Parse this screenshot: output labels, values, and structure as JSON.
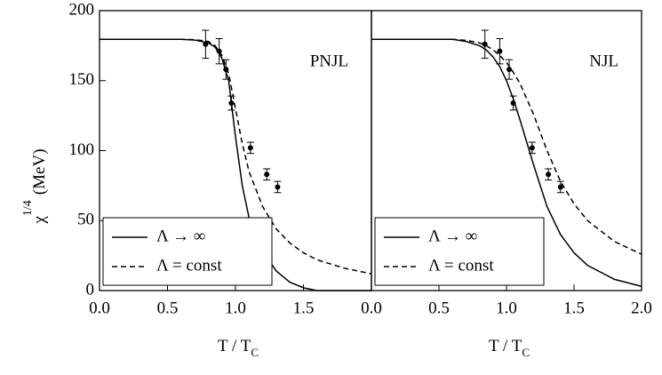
{
  "chart_data": [
    {
      "type": "line",
      "annotation": "PNJL",
      "ylabel": [
        "χ",
        "1/4",
        "(MeV)"
      ],
      "xlabel": [
        "T / T",
        "C"
      ],
      "xlim": [
        0,
        2
      ],
      "ylim": [
        0,
        200
      ],
      "xticks": [
        {
          "value": 0,
          "label": "0.0"
        },
        {
          "value": 0.5,
          "label": "0.5"
        },
        {
          "value": 1,
          "label": "1.0"
        },
        {
          "value": 1.5,
          "label": "1.5"
        }
      ],
      "yticks": [
        0,
        50,
        100,
        150,
        200
      ],
      "x": [
        0,
        0.2,
        0.4,
        0.6,
        0.7,
        0.8,
        0.85,
        0.9,
        0.95,
        1.0,
        1.05,
        1.1,
        1.2,
        1.3,
        1.4,
        1.5,
        1.6,
        1.8,
        2.0
      ],
      "series": [
        {
          "name": "Λ → ∞",
          "color": "#000000",
          "dash": "solid",
          "values": [
            179.5,
            179.5,
            179.5,
            179.5,
            179,
            177,
            174,
            166,
            150,
            110,
            75,
            52,
            28,
            14,
            6,
            2,
            0,
            0,
            0
          ]
        },
        {
          "name": "Λ = const",
          "color": "#000000",
          "dash": "dashed",
          "values": [
            179.5,
            179.5,
            179.5,
            179.5,
            179.3,
            178,
            175,
            168,
            155,
            130,
            105,
            85,
            60,
            44,
            34,
            27,
            22,
            16,
            12
          ]
        }
      ],
      "points": {
        "x": [
          0.78,
          0.88,
          0.93,
          0.97,
          1.11,
          1.23,
          1.31
        ],
        "values": [
          176,
          171,
          158,
          134,
          102,
          83,
          74
        ],
        "errors": [
          10,
          9,
          7,
          5,
          4,
          4,
          4
        ]
      }
    },
    {
      "type": "line",
      "annotation": "NJL",
      "xlabel": [
        "T / T",
        "C"
      ],
      "xlim": [
        0,
        2
      ],
      "ylim": [
        0,
        200
      ],
      "xticks": [
        {
          "value": 0,
          "label": "0.0"
        },
        {
          "value": 0.5,
          "label": "0.5"
        },
        {
          "value": 1,
          "label": "1.0"
        },
        {
          "value": 1.5,
          "label": "1.5"
        },
        {
          "value": 2,
          "label": "2.0"
        }
      ],
      "x": [
        0,
        0.2,
        0.4,
        0.6,
        0.7,
        0.8,
        0.85,
        0.9,
        0.95,
        1.0,
        1.05,
        1.1,
        1.2,
        1.3,
        1.4,
        1.5,
        1.6,
        1.8,
        2.0
      ],
      "series": [
        {
          "name": "Λ → ∞",
          "color": "#000000",
          "dash": "solid",
          "values": [
            179.5,
            179.5,
            179.5,
            179.5,
            178,
            175,
            172,
            167,
            160,
            150,
            137,
            122,
            90,
            60,
            40,
            27,
            18,
            8,
            3
          ]
        },
        {
          "name": "Λ = const",
          "color": "#000000",
          "dash": "dashed",
          "values": [
            179.5,
            179.5,
            179.5,
            179.5,
            178.8,
            177,
            175,
            172,
            168,
            163,
            156,
            148,
            126,
            100,
            78,
            62,
            50,
            35,
            26
          ]
        }
      ],
      "points": {
        "x": [
          0.84,
          0.95,
          1.02,
          1.05,
          1.19,
          1.31,
          1.4
        ],
        "values": [
          176,
          171,
          158,
          134,
          102,
          83,
          74
        ],
        "errors": [
          10,
          9,
          7,
          5,
          4,
          4,
          4
        ]
      }
    }
  ]
}
